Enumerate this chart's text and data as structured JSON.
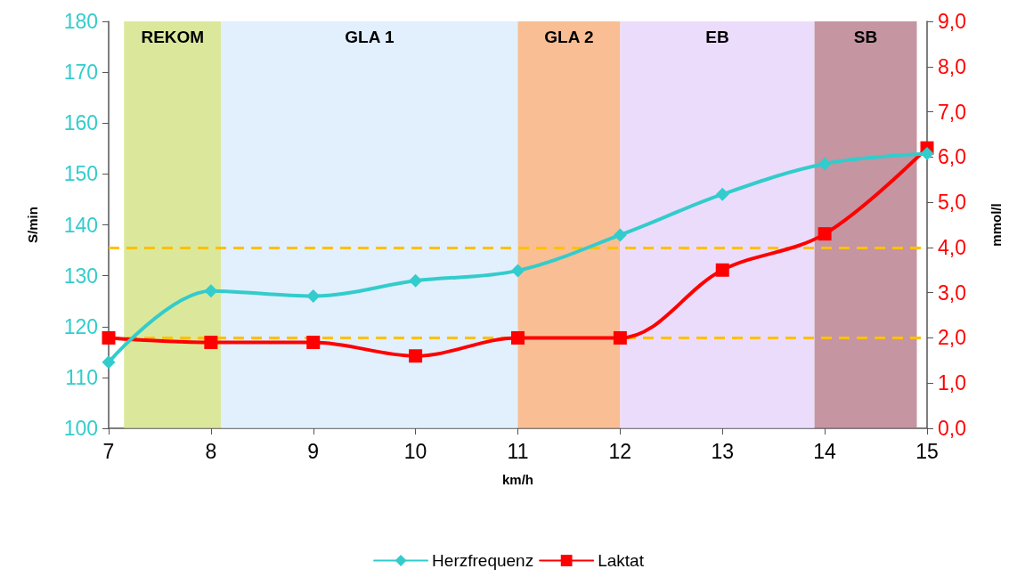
{
  "chart_data": {
    "type": "line",
    "xlabel": "km/h",
    "ylabel": "S/min",
    "y2label": "mmol/l",
    "x": [
      7,
      8,
      9,
      10,
      11,
      12,
      13,
      14,
      15
    ],
    "series": [
      {
        "name": "Herzfrequenz",
        "color": "#33cccc",
        "marker": "diamond",
        "values": [
          113,
          127,
          126,
          129,
          131,
          138,
          146,
          152,
          154
        ]
      },
      {
        "name": "Laktat",
        "color": "#ff0000",
        "marker": "square",
        "axis": "y2",
        "values": [
          2.0,
          1.9,
          1.9,
          1.6,
          2.0,
          2.0,
          3.5,
          4.3,
          6.2
        ]
      }
    ],
    "xlim": [
      7,
      15
    ],
    "xticks": [
      7,
      8,
      9,
      10,
      11,
      12,
      13,
      14,
      15
    ],
    "ylim": [
      100,
      180
    ],
    "yticks": [
      100,
      110,
      120,
      130,
      140,
      150,
      160,
      170,
      180
    ],
    "y2lim": [
      0,
      9
    ],
    "y2ticks": [
      {
        "value": 0,
        "label": "0,0"
      },
      {
        "value": 1,
        "label": "1,0"
      },
      {
        "value": 2,
        "label": "2,0"
      },
      {
        "value": 3,
        "label": "3,0"
      },
      {
        "value": 4,
        "label": "4,0"
      },
      {
        "value": 5,
        "label": "5,0"
      },
      {
        "value": 6,
        "label": "6,0"
      },
      {
        "value": 7,
        "label": "7,0"
      },
      {
        "value": 8,
        "label": "8,0"
      },
      {
        "value": 9,
        "label": "9,0"
      }
    ],
    "bands": [
      {
        "axis": "x",
        "from": 7.15,
        "to": 8.1,
        "label": "REKOM",
        "color": "#cfe07a"
      },
      {
        "axis": "x",
        "from": 8.1,
        "to": 11,
        "label": "GLA 1",
        "color": "#d8eafc"
      },
      {
        "axis": "x",
        "from": 11,
        "to": 12,
        "label": "GLA 2",
        "color": "#f7a870"
      },
      {
        "axis": "x",
        "from": 12,
        "to": 13.9,
        "label": "EB",
        "color": "#e5d0fa"
      },
      {
        "axis": "x",
        "from": 13.9,
        "to": 14.9,
        "label": "SB",
        "color": "#b27283"
      }
    ],
    "ref_lines": [
      {
        "axis": "y2",
        "value": 4.0,
        "color": "#ffc000",
        "line_style": "dashed"
      },
      {
        "axis": "y2",
        "value": 2.0,
        "color": "#ffc000",
        "line_style": "dashed"
      }
    ],
    "legend": "bottom",
    "line_style": "solid"
  }
}
